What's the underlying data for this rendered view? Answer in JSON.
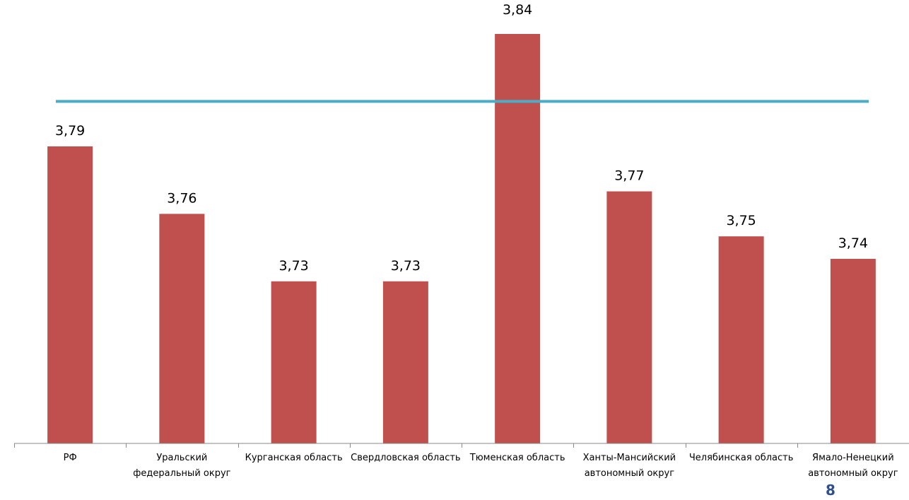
{
  "chart_data": {
    "type": "bar",
    "categories": [
      "РФ",
      "Уральский федеральный округ",
      "Курганская область",
      "Свердловская область",
      "Тюменская область",
      "Ханты-Мансийский автономный округ",
      "Челябинская область",
      "Ямало-Ненецкий автономный округ"
    ],
    "values": [
      3.79,
      3.76,
      3.73,
      3.73,
      3.84,
      3.77,
      3.75,
      3.74
    ],
    "data_labels": [
      "3,79",
      "3,76",
      "3,73",
      "3,73",
      "3,84",
      "3,77",
      "3,75",
      "3,74"
    ],
    "reference_line": {
      "value": 3.81
    },
    "bar_color": "#c0504d",
    "line_color": "#4bacc6",
    "title": "",
    "xlabel": "",
    "ylabel": "",
    "grid": false,
    "legend": "none"
  },
  "page_number": "8"
}
